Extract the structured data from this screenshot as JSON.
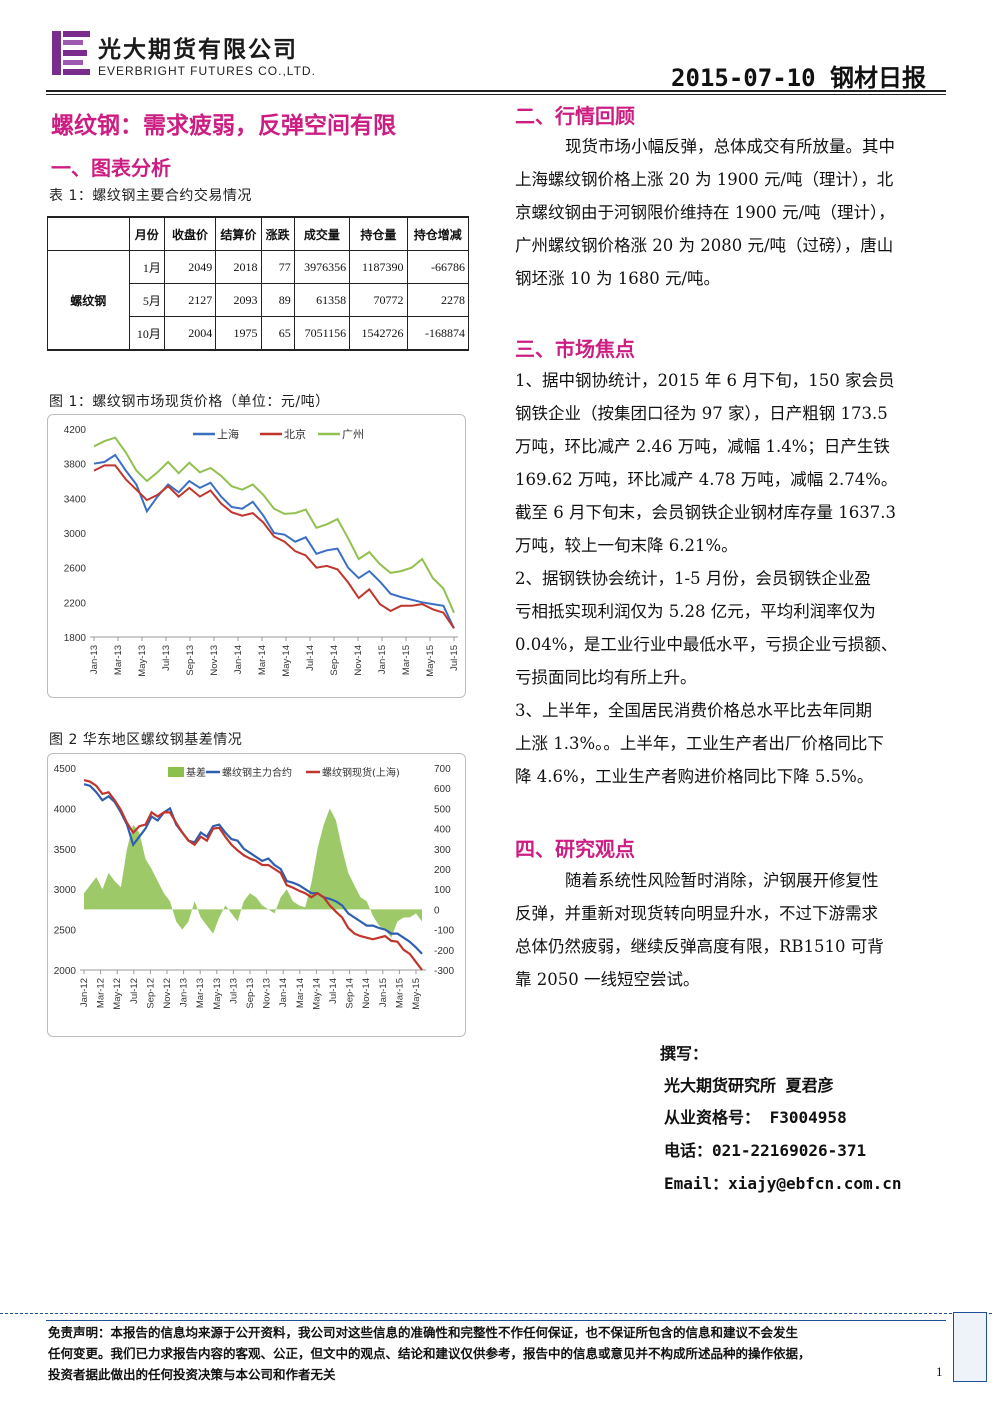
{
  "header": {
    "company_cn": "光大期货有限公司",
    "company_en": "EVERBRIGHT FUTURES CO.,LTD.",
    "report_id": "2015-07-10 钢材日报",
    "brand_color": "#7a2c8c"
  },
  "title": "螺纹钢：需求疲弱，反弹空间有限",
  "section1": {
    "heading": "一、图表分析",
    "table_caption": "表 1：螺纹钢主要合约交易情况",
    "table": {
      "headers": [
        "月份",
        "收盘价",
        "结算价",
        "涨跌",
        "成交量",
        "持仓量",
        "持仓增减"
      ],
      "product": "螺纹钢",
      "rows": [
        [
          "1月",
          "2049",
          "2018",
          "77",
          "3976356",
          "1187390",
          "-66786"
        ],
        [
          "5月",
          "2127",
          "2093",
          "89",
          "61358",
          "70772",
          "2278"
        ],
        [
          "10月",
          "2004",
          "1975",
          "65",
          "7051156",
          "1542726",
          "-168874"
        ]
      ]
    },
    "fig1_caption": "图 1：螺纹钢市场现货价格（单位：元/吨）",
    "fig2_caption": "图 2  华东地区螺纹钢基差情况"
  },
  "section2": {
    "heading": "二、行情回顾",
    "lines": [
      "现货市场小幅反弹，总体成交有所放量。其中",
      "上海螺纹钢价格上涨 20 为 1900 元/吨（理计），北",
      "京螺纹钢由于河钢限价维持在 1900 元/吨（理计），",
      "广州螺纹钢价格涨 20 为 2080 元/吨（过磅），唐山",
      "钢坯涨 10 为 1680 元/吨。"
    ]
  },
  "section3": {
    "heading": "三、市场焦点",
    "lines": [
      "1、据中钢协统计，2015 年 6 月下旬，150 家会员",
      "钢铁企业（按集团口径为 97 家），日产粗钢 173.5",
      "万吨，环比减产 2.46 万吨，减幅 1.4%；日产生铁",
      "169.62 万吨，环比减产 4.78 万吨，减幅 2.74%。",
      "截至 6 月下旬末，会员钢铁企业钢材库存量 1637.3",
      "万吨，较上一旬末降 6.21%。",
      "2、据钢铁协会统计，1-5 月份，会员钢铁企业盈",
      "亏相抵实现利润仅为 5.28 亿元，平均利润率仅为",
      "0.04%，是工业行业中最低水平，亏损企业亏损额、",
      "亏损面同比均有所上升。",
      "3、上半年，全国居民消费价格总水平比去年同期",
      "上涨 1.3%。。上半年，工业生产者出厂价格同比下",
      "降 4.6%，工业生产者购进价格同比下降 5.5%。"
    ]
  },
  "section4": {
    "heading": "四、研究观点",
    "lines": [
      "随着系统性风险暂时消除，沪钢展开修复性",
      "反弹，并重新对现货转向明显升水，不过下游需求",
      "总体仍然疲弱，继续反弹高度有限，RB1510 可背",
      "靠 2050 一线短空尝试。"
    ]
  },
  "author": {
    "label": "撰写：",
    "name": "光大期货研究所  夏君彦",
    "license": "从业资格号：  F3004958",
    "phone": "电话：021-22169026-371",
    "email": "Email：xiajy@ebfcn.com.cn"
  },
  "footer": {
    "disclaimer_lines": [
      "免责声明：本报告的信息均来源于公开资料，我公司对这些信息的准确性和完整性不作任何保证，也不保证所包含的信息和建议不会发生",
      "任何变更。我们已力求报告内容的客观、公正，但文中的观点、结论和建议仅供参考，报告中的信息或意见并不构成所述品种的操作依据，",
      "投资者据此做出的任何投资决策与本公司和作者无关"
    ],
    "page": "1"
  },
  "chart_data": [
    {
      "type": "line",
      "x_ticks": [
        "Jan-13",
        "Mar-13",
        "May-13",
        "Jul-13",
        "Sep-13",
        "Nov-13",
        "Jan-14",
        "Mar-14",
        "May-14",
        "Jul-14",
        "Sep-14",
        "Nov-14",
        "Jan-15",
        "Mar-15",
        "May-15",
        "Jul-15"
      ],
      "y_ticks": [
        "4200",
        "3800",
        "3400",
        "3000",
        "2600",
        "2200",
        "1800"
      ],
      "ylim": [
        1800,
        4200
      ],
      "legend_position": "top",
      "series": [
        {
          "name": "上海",
          "color": "#3a6fc4",
          "values": [
            3800,
            3820,
            3900,
            3720,
            3560,
            3250,
            3420,
            3560,
            3470,
            3600,
            3520,
            3580,
            3420,
            3300,
            3280,
            3360,
            3200,
            3000,
            2980,
            2900,
            2950,
            2760,
            2800,
            2820,
            2600,
            2480,
            2560,
            2440,
            2300,
            2260,
            2230,
            2200,
            2180,
            2160,
            1900
          ]
        },
        {
          "name": "北京",
          "color": "#c0362c",
          "values": [
            3720,
            3780,
            3780,
            3620,
            3500,
            3380,
            3440,
            3540,
            3420,
            3520,
            3420,
            3490,
            3340,
            3240,
            3200,
            3230,
            3120,
            2960,
            2900,
            2790,
            2740,
            2600,
            2620,
            2580,
            2430,
            2250,
            2350,
            2180,
            2100,
            2160,
            2160,
            2180,
            2120,
            2080,
            1900
          ]
        },
        {
          "name": "广州",
          "color": "#92c051",
          "values": [
            4000,
            4060,
            4100,
            3930,
            3720,
            3600,
            3700,
            3820,
            3690,
            3810,
            3700,
            3750,
            3660,
            3540,
            3500,
            3560,
            3440,
            3280,
            3220,
            3230,
            3270,
            3060,
            3100,
            3160,
            2940,
            2700,
            2780,
            2640,
            2540,
            2560,
            2600,
            2700,
            2480,
            2360,
            2080
          ]
        }
      ]
    },
    {
      "type": "line",
      "x_ticks": [
        "Jan-12",
        "Mar-12",
        "May-12",
        "Jul-12",
        "Sep-12",
        "Nov-12",
        "Jan-13",
        "Mar-13",
        "May-13",
        "Jul-13",
        "Sep-13",
        "Nov-13",
        "Jan-14",
        "Mar-14",
        "May-14",
        "Jul-14",
        "Sep-14",
        "Nov-14",
        "Jan-15",
        "Mar-15",
        "May-15"
      ],
      "y_left_ticks": [
        "4500",
        "4000",
        "3500",
        "3000",
        "2500",
        "2000"
      ],
      "y_right_ticks": [
        "700",
        "600",
        "500",
        "400",
        "300",
        "200",
        "100",
        "0",
        "-100",
        "-200",
        "-300"
      ],
      "ylim_left": [
        2000,
        4500
      ],
      "ylim_right": [
        -300,
        700
      ],
      "legend_position": "top",
      "series": [
        {
          "name": "基差",
          "type": "area",
          "axis": "right",
          "color": "#8cc04d",
          "values": [
            80,
            120,
            160,
            100,
            180,
            140,
            110,
            300,
            420,
            380,
            250,
            200,
            140,
            80,
            40,
            -60,
            -100,
            -60,
            40,
            -40,
            -80,
            -120,
            -40,
            20,
            -20,
            -60,
            40,
            80,
            60,
            20,
            0,
            -20,
            60,
            100,
            40,
            20,
            10,
            130,
            300,
            420,
            500,
            440,
            300,
            180,
            120,
            60,
            40,
            -30,
            -80,
            -100,
            -140,
            -60,
            -40,
            -40,
            -20,
            -60
          ]
        },
        {
          "name": "螺纹钢主力合约",
          "axis": "left",
          "color": "#2f5fae",
          "values": [
            4300,
            4280,
            4200,
            4100,
            4150,
            4080,
            3950,
            3800,
            3550,
            3650,
            3750,
            3900,
            3850,
            3950,
            4000,
            3800,
            3700,
            3600,
            3580,
            3700,
            3650,
            3780,
            3800,
            3700,
            3620,
            3600,
            3500,
            3450,
            3400,
            3350,
            3380,
            3300,
            3250,
            3100,
            3080,
            3050,
            3000,
            2950,
            2950,
            2900,
            2880,
            2850,
            2800,
            2700,
            2650,
            2600,
            2550,
            2550,
            2520,
            2500,
            2450,
            2450,
            2400,
            2350,
            2280,
            2200
          ]
        },
        {
          "name": "螺纹钢现货(上海)",
          "axis": "left",
          "color": "#c0362c",
          "values": [
            4350,
            4330,
            4280,
            4180,
            4200,
            4100,
            3980,
            3820,
            3700,
            3780,
            3800,
            3950,
            3900,
            3950,
            3950,
            3820,
            3700,
            3600,
            3550,
            3650,
            3600,
            3750,
            3760,
            3650,
            3550,
            3480,
            3420,
            3380,
            3350,
            3300,
            3300,
            3250,
            3200,
            3050,
            3020,
            2980,
            2950,
            2900,
            2950,
            2900,
            2800,
            2720,
            2650,
            2520,
            2450,
            2420,
            2400,
            2380,
            2400,
            2420,
            2360,
            2350,
            2250,
            2200,
            2100,
            2000
          ]
        }
      ]
    }
  ]
}
